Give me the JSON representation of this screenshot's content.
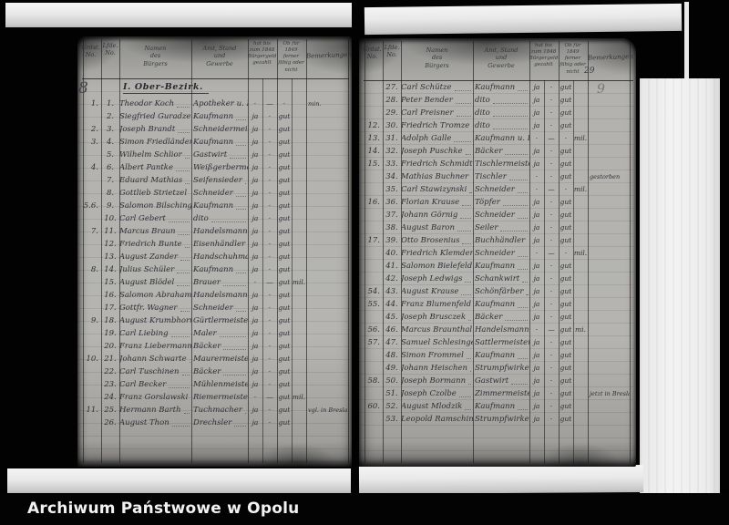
{
  "colors": {
    "paper": "#b3b2ae",
    "ink": "#2f2f36",
    "caption_text": "#f2f2f2",
    "background": "#020202"
  },
  "caption": {
    "archive_name": "Archiwum Państwowe w Opolu"
  },
  "scan": {
    "left_page_number": "8",
    "right_page_number": "9",
    "right_header_scribble": "29",
    "section_heading": "I. Ober-Bezirk.",
    "columns": {
      "grund_no": "Grdst.\nNo.",
      "lfd_no": "Lfde.\nNo.",
      "name": "Namen\ndes\nBürgers",
      "trade": "Amt, Stand\nund\nGewerbe",
      "paid_1848": "hat bis\nzum 1848\nBürgergeld\ngezahlt",
      "status_1849": "Ob für\n1849 ferner\nfähig oder\nnicht",
      "remarks": "Bemerkungen"
    },
    "pages": [
      {
        "rows": [
          {
            "g": "1.",
            "n": "1.",
            "name": "Theodor Koch",
            "trade": "Apotheker u. Rathsherr",
            "m1": "·",
            "m2": "—",
            "m3": "·",
            "m4": "",
            "rem": "min."
          },
          {
            "g": "",
            "n": "2.",
            "name": "Siegfried Guradze",
            "trade": "Kaufmann",
            "m1": "ja",
            "m2": "·",
            "m3": "gut",
            "m4": "",
            "rem": ""
          },
          {
            "g": "2.",
            "n": "3.",
            "name": "Joseph Brandt",
            "trade": "Schneidermeister",
            "m1": "ja",
            "m2": "·",
            "m3": "gut",
            "m4": "",
            "rem": ""
          },
          {
            "g": "3.",
            "n": "4.",
            "name": "Simon Friedländer",
            "trade": "Kaufmann",
            "m1": "ja",
            "m2": "·",
            "m3": "gut",
            "m4": "",
            "rem": ""
          },
          {
            "g": "",
            "n": "5.",
            "name": "Wilhelm Schlior",
            "trade": "Gastwirt",
            "m1": "ja",
            "m2": "·",
            "m3": "gut",
            "m4": "",
            "rem": ""
          },
          {
            "g": "4.",
            "n": "6.",
            "name": "Albert Pantke",
            "trade": "Weißgerbermeister",
            "m1": "ja",
            "m2": "·",
            "m3": "gut",
            "m4": "",
            "rem": ""
          },
          {
            "g": "",
            "n": "7.",
            "name": "Eduard Mathias",
            "trade": "Seifensieder",
            "m1": "ja",
            "m2": "·",
            "m3": "gut",
            "m4": "",
            "rem": ""
          },
          {
            "g": "",
            "n": "8.",
            "name": "Gottlieb Strietzel",
            "trade": "Schneider",
            "m1": "ja",
            "m2": "·",
            "m3": "gut",
            "m4": "",
            "rem": ""
          },
          {
            "g": "5.6.",
            "n": "9.",
            "name": "Salomon Bilschinger",
            "trade": "Kaufmann",
            "m1": "ja",
            "m2": "·",
            "m3": "gut",
            "m4": "",
            "rem": ""
          },
          {
            "g": "",
            "n": "10.",
            "name": "Carl Gebert",
            "trade": "dito",
            "m1": "ja",
            "m2": "·",
            "m3": "gut",
            "m4": "",
            "rem": ""
          },
          {
            "g": "7.",
            "n": "11.",
            "name": "Marcus Braun",
            "trade": "Handelsmann",
            "m1": "ja",
            "m2": "·",
            "m3": "gut",
            "m4": "",
            "rem": ""
          },
          {
            "g": "",
            "n": "12.",
            "name": "Friedrich Bunte",
            "trade": "Eisenhändler",
            "m1": "ja",
            "m2": "·",
            "m3": "gut",
            "m4": "",
            "rem": ""
          },
          {
            "g": "",
            "n": "13.",
            "name": "August Zander",
            "trade": "Handschuhmacher",
            "m1": "ja",
            "m2": "·",
            "m3": "gut",
            "m4": "",
            "rem": ""
          },
          {
            "g": "8.",
            "n": "14.",
            "name": "Julius Schüler",
            "trade": "Kaufmann",
            "m1": "ja",
            "m2": "·",
            "m3": "gut",
            "m4": "",
            "rem": ""
          },
          {
            "g": "",
            "n": "15.",
            "name": "August Blödel",
            "trade": "Brauer",
            "m1": "·",
            "m2": "—",
            "m3": "gut",
            "m4": "mil.",
            "rem": ""
          },
          {
            "g": "",
            "n": "16.",
            "name": "Salomon Abraham",
            "trade": "Handelsmann",
            "m1": "ja",
            "m2": "·",
            "m3": "gut",
            "m4": "",
            "rem": ""
          },
          {
            "g": "",
            "n": "17.",
            "name": "Gottfr. Wagner",
            "trade": "Schneider",
            "m1": "ja",
            "m2": "·",
            "m3": "gut",
            "m4": "",
            "rem": ""
          },
          {
            "g": "9.",
            "n": "18.",
            "name": "August Krumbhorn",
            "trade": "Gürtlermeister",
            "m1": "ja",
            "m2": "·",
            "m3": "gut",
            "m4": "",
            "rem": ""
          },
          {
            "g": "",
            "n": "19.",
            "name": "Carl Liebing",
            "trade": "Maler",
            "m1": "ja",
            "m2": "·",
            "m3": "gut",
            "m4": "",
            "rem": ""
          },
          {
            "g": "",
            "n": "20.",
            "name": "Franz Liebermann",
            "trade": "Bäcker",
            "m1": "ja",
            "m2": "·",
            "m3": "gut",
            "m4": "",
            "rem": ""
          },
          {
            "g": "10.",
            "n": "21.",
            "name": "Johann Schwarte",
            "trade": "Maurermeister",
            "m1": "ja",
            "m2": "·",
            "m3": "gut",
            "m4": "",
            "rem": ""
          },
          {
            "g": "",
            "n": "22.",
            "name": "Carl Tuschinen",
            "trade": "Bäcker",
            "m1": "ja",
            "m2": "·",
            "m3": "gut",
            "m4": "",
            "rem": ""
          },
          {
            "g": "",
            "n": "23.",
            "name": "Carl Becker",
            "trade": "Mühlenmeister",
            "m1": "ja",
            "m2": "·",
            "m3": "gut",
            "m4": "",
            "rem": ""
          },
          {
            "g": "",
            "n": "24.",
            "name": "Franz Gorslawski",
            "trade": "Riemermeister",
            "m1": "·",
            "m2": "—",
            "m3": "gut",
            "m4": "mil.",
            "rem": ""
          },
          {
            "g": "11.",
            "n": "25.",
            "name": "Hermann Barth",
            "trade": "Tuchmacher",
            "m1": "ja",
            "m2": "·",
            "m3": "gut",
            "m4": "",
            "rem": "vgl. in Breslau"
          },
          {
            "g": "",
            "n": "26.",
            "name": "August Thon",
            "trade": "Drechsler",
            "m1": "ja",
            "m2": "·",
            "m3": "gut",
            "m4": "",
            "rem": ""
          }
        ]
      },
      {
        "rows": [
          {
            "g": "",
            "n": "27.",
            "name": "Carl Schütze",
            "trade": "Kaufmann",
            "m1": "ja",
            "m2": "·",
            "m3": "gut",
            "m4": "",
            "rem": ""
          },
          {
            "g": "",
            "n": "28.",
            "name": "Peter Bender",
            "trade": "dito",
            "m1": "ja",
            "m2": "·",
            "m3": "gut",
            "m4": "",
            "rem": ""
          },
          {
            "g": "",
            "n": "29.",
            "name": "Carl Preisner",
            "trade": "dito",
            "m1": "ja",
            "m2": "·",
            "m3": "gut",
            "m4": "",
            "rem": ""
          },
          {
            "g": "12.",
            "n": "30.",
            "name": "Friedrich Tromze",
            "trade": "dito",
            "m1": "ja",
            "m2": "·",
            "m3": "gut",
            "m4": "",
            "rem": ""
          },
          {
            "g": "13.",
            "n": "31.",
            "name": "Adolph Galle",
            "trade": "Kaufmann u. Rathsherr",
            "m1": "·",
            "m2": "—",
            "m3": "·",
            "m4": "mil.",
            "rem": ""
          },
          {
            "g": "14.",
            "n": "32.",
            "name": "Joseph Puschke",
            "trade": "Bäcker",
            "m1": "ja",
            "m2": "·",
            "m3": "gut",
            "m4": "",
            "rem": ""
          },
          {
            "g": "15.",
            "n": "33.",
            "name": "Friedrich Schmidt",
            "trade": "Tischlermeister",
            "m1": "ja",
            "m2": "·",
            "m3": "gut",
            "m4": "",
            "rem": ""
          },
          {
            "g": "",
            "n": "34.",
            "name": "Mathias Buchner",
            "trade": "Tischler",
            "m1": "·",
            "m2": "·",
            "m3": "gut",
            "m4": "",
            "rem": "gestorben"
          },
          {
            "g": "",
            "n": "35.",
            "name": "Carl Stawizynski",
            "trade": "Schneider",
            "m1": "·",
            "m2": "—",
            "m3": "·",
            "m4": "mil.",
            "rem": ""
          },
          {
            "g": "16.",
            "n": "36.",
            "name": "Florian Krause",
            "trade": "Töpfer",
            "m1": "ja",
            "m2": "·",
            "m3": "gut",
            "m4": "",
            "rem": ""
          },
          {
            "g": "",
            "n": "37.",
            "name": "Johann Görnig",
            "trade": "Schneider",
            "m1": "ja",
            "m2": "·",
            "m3": "gut",
            "m4": "",
            "rem": ""
          },
          {
            "g": "",
            "n": "38.",
            "name": "August Baron",
            "trade": "Seiler",
            "m1": "ja",
            "m2": "·",
            "m3": "gut",
            "m4": "",
            "rem": ""
          },
          {
            "g": "17.",
            "n": "39.",
            "name": "Otto Brosenius",
            "trade": "Buchhändler",
            "m1": "ja",
            "m2": "·",
            "m3": "gut",
            "m4": "",
            "rem": ""
          },
          {
            "g": "",
            "n": "40.",
            "name": "Friedrich Klemder",
            "trade": "Schneider",
            "m1": "·",
            "m2": "—",
            "m3": "·",
            "m4": "mil.",
            "rem": ""
          },
          {
            "g": "",
            "n": "41.",
            "name": "Salomon Bielefeld",
            "trade": "Kaufmann",
            "m1": "ja",
            "m2": "·",
            "m3": "gut",
            "m4": "",
            "rem": ""
          },
          {
            "g": "",
            "n": "42.",
            "name": "Joseph Ledwigs",
            "trade": "Schankwirt",
            "m1": "ja",
            "m2": "·",
            "m3": "gut",
            "m4": "",
            "rem": ""
          },
          {
            "g": "54.",
            "n": "43.",
            "name": "August Krause",
            "trade": "Schönfärber",
            "m1": "ja",
            "m2": "·",
            "m3": "gut",
            "m4": "",
            "rem": ""
          },
          {
            "g": "55.",
            "n": "44.",
            "name": "Franz Blumenfeld",
            "trade": "Kaufmann",
            "m1": "ja",
            "m2": "·",
            "m3": "gut",
            "m4": "",
            "rem": ""
          },
          {
            "g": "",
            "n": "45.",
            "name": "Joseph Brusczek",
            "trade": "Bäcker",
            "m1": "ja",
            "m2": "·",
            "m3": "gut",
            "m4": "",
            "rem": ""
          },
          {
            "g": "56.",
            "n": "46.",
            "name": "Marcus Braunthal",
            "trade": "Handelsmann",
            "m1": "·",
            "m2": "—",
            "m3": "gut",
            "m4": "mi.",
            "rem": ""
          },
          {
            "g": "57.",
            "n": "47.",
            "name": "Samuel Schlesinger",
            "trade": "Sattlermeister",
            "m1": "ja",
            "m2": "·",
            "m3": "gut",
            "m4": "",
            "rem": ""
          },
          {
            "g": "",
            "n": "48.",
            "name": "Simon Frommel",
            "trade": "Kaufmann",
            "m1": "ja",
            "m2": "·",
            "m3": "gut",
            "m4": "",
            "rem": ""
          },
          {
            "g": "",
            "n": "49.",
            "name": "Johann Heischen",
            "trade": "Strumpfwirker",
            "m1": "ja",
            "m2": "·",
            "m3": "gut",
            "m4": "",
            "rem": ""
          },
          {
            "g": "58.",
            "n": "50.",
            "name": "Joseph Bormann",
            "trade": "Gastwirt",
            "m1": "ja",
            "m2": "·",
            "m3": "gut",
            "m4": "",
            "rem": ""
          },
          {
            "g": "",
            "n": "51.",
            "name": "Joseph Czolbe",
            "trade": "Zimmermeister",
            "m1": "ja",
            "m2": "·",
            "m3": "gut",
            "m4": "",
            "rem": "jetzt in Breslau"
          },
          {
            "g": "60.",
            "n": "52.",
            "name": "August Mlodzik",
            "trade": "Kaufmann",
            "m1": "ja",
            "m2": "·",
            "m3": "gut",
            "m4": "",
            "rem": ""
          },
          {
            "g": "",
            "n": "53.",
            "name": "Leopold Ramschin",
            "trade": "Strumpfwirker",
            "m1": "ja",
            "m2": "·",
            "m3": "gut",
            "m4": "",
            "rem": ""
          }
        ]
      }
    ]
  }
}
